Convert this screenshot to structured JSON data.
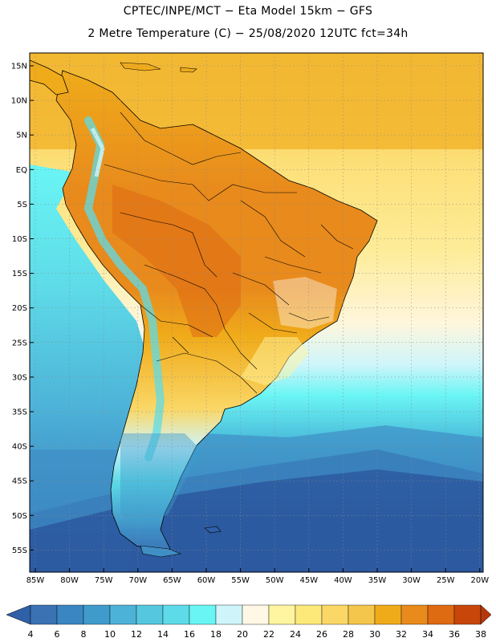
{
  "title_line1": "CPTEC/INPE/MCT −  Eta Model 15km − GFS",
  "title_line2": "2 Metre Temperature (C) − 25/08/2020 12UTC fct=34h",
  "lat_ticks": [
    "15N",
    "10N",
    "5N",
    "EQ",
    "5S",
    "10S",
    "15S",
    "20S",
    "25S",
    "30S",
    "35S",
    "40S",
    "45S",
    "50S",
    "55S"
  ],
  "lon_ticks": [
    "85W",
    "80W",
    "75W",
    "70W",
    "65W",
    "60W",
    "55W",
    "50W",
    "45W",
    "40W",
    "35W",
    "30W",
    "25W",
    "20W"
  ],
  "colorbar": {
    "labels": [
      "4",
      "6",
      "8",
      "10",
      "12",
      "14",
      "16",
      "18",
      "20",
      "22",
      "24",
      "26",
      "28",
      "30",
      "32",
      "34",
      "36",
      "38"
    ],
    "colors": [
      "#3a72b4",
      "#3a86c2",
      "#3f9bcc",
      "#4db2d8",
      "#55c8e0",
      "#5edbe8",
      "#6af5f5",
      "#cff5fa",
      "#fff8e4",
      "#fff5a0",
      "#fde97a",
      "#fad766",
      "#f5c64c",
      "#f0ab1a",
      "#e88a1c",
      "#de6a12",
      "#c8460a"
    ],
    "low_arrow_color": "#2f60a8",
    "high_arrow_color": "#b8370a"
  },
  "colors": {
    "land_warm": "#f0ab1a",
    "ocean_warm": "#f5c64c",
    "ocean_mid": "#5edbe8",
    "ocean_cold": "#2c5aa0",
    "border": "#000000"
  }
}
